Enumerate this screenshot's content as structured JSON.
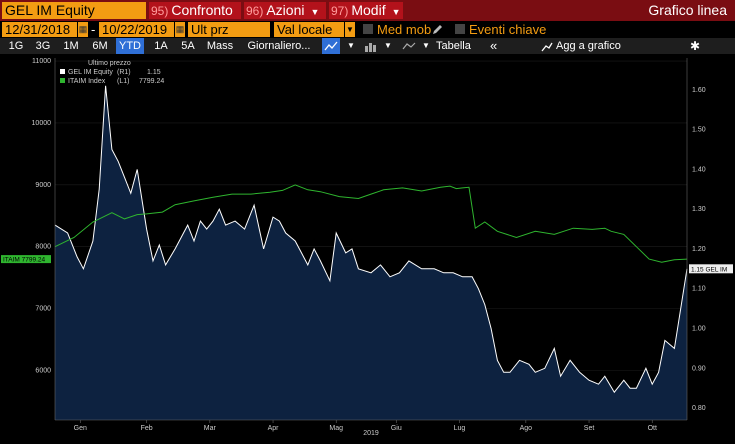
{
  "ticker": "GEL IM Equity",
  "menu": [
    {
      "num": "95)",
      "label": "Confronto"
    },
    {
      "num": "96)",
      "label": "Azioni"
    },
    {
      "num": "97)",
      "label": "Modif"
    }
  ],
  "graph_title": "Grafico linea",
  "controls": {
    "start_date": "12/31/2018",
    "separator": "-",
    "end_date": "10/22/2019",
    "price_field": "Ult prz",
    "currency": "Val locale",
    "moving_avg_label": "Med mob",
    "key_events_label": "Eventi chiave"
  },
  "periods": [
    "1G",
    "3G",
    "1M",
    "6M",
    "YTD",
    "1A",
    "5A",
    "Mass"
  ],
  "selected_period": "YTD",
  "frequency": "Giornaliero...",
  "table_label": "Tabella",
  "collapse_label": "«",
  "add_to_chart_label": "Agg a grafico",
  "icons": [
    "line-chart-icon",
    "dropdown-arrow-icon",
    "pencil-icon",
    "gear-icon",
    "calendar-icon"
  ],
  "colors": {
    "accent_orange": "#f39c12",
    "header_red": "#7a0d12",
    "area_fill": "#0d2240",
    "equity_line": "#ffffff",
    "index_line": "#2fb52f"
  },
  "chart_data": {
    "type": "area",
    "legend": {
      "title": "Ultimo prezzo",
      "entries": [
        {
          "name": "GEL IM Equity",
          "axis": "(R1)",
          "value": "1.15",
          "color": "#ffffff"
        },
        {
          "name": "ITAIM Index",
          "axis": "(L1)",
          "value": "7799.24",
          "color": "#2fb52f"
        }
      ]
    },
    "x_ticks": [
      "Gen",
      "Feb",
      "Mar",
      "Apr",
      "Mag",
      "Giu",
      "Lug",
      "Ago",
      "Set",
      "Ott"
    ],
    "x_tick_pos": [
      0.04,
      0.145,
      0.245,
      0.345,
      0.445,
      0.54,
      0.64,
      0.745,
      0.845,
      0.945
    ],
    "x_label": "2019",
    "left_axis": {
      "ticks": [
        6000,
        7000,
        8000,
        9000,
        10000,
        11000
      ],
      "min": 5200,
      "max": 11050
    },
    "right_axis": {
      "ticks": [
        "0.80",
        "0.90",
        "1.00",
        "1.10",
        "1.20",
        "1.30",
        "1.40",
        "1.50",
        "1.60"
      ],
      "min": 0.77,
      "max": 1.68
    },
    "last_label_left": "ITAIM 7799.24",
    "last_label_right": "1.15 GEL IM",
    "series": [
      {
        "name": "GEL IM Equity",
        "axis": "right",
        "x": [
          0.0,
          0.02,
          0.035,
          0.045,
          0.06,
          0.07,
          0.08,
          0.09,
          0.1,
          0.11,
          0.12,
          0.13,
          0.145,
          0.155,
          0.165,
          0.175,
          0.19,
          0.2,
          0.21,
          0.22,
          0.23,
          0.24,
          0.25,
          0.26,
          0.27,
          0.285,
          0.3,
          0.315,
          0.33,
          0.345,
          0.355,
          0.365,
          0.38,
          0.39,
          0.4,
          0.41,
          0.42,
          0.435,
          0.445,
          0.46,
          0.47,
          0.48,
          0.5,
          0.515,
          0.53,
          0.545,
          0.56,
          0.58,
          0.6,
          0.615,
          0.63,
          0.645,
          0.66,
          0.67,
          0.68,
          0.69,
          0.7,
          0.71,
          0.72,
          0.735,
          0.75,
          0.76,
          0.775,
          0.79,
          0.8,
          0.815,
          0.83,
          0.845,
          0.86,
          0.87,
          0.885,
          0.9,
          0.91,
          0.92,
          0.935,
          0.945,
          0.955,
          0.965,
          0.98,
          1.0
        ],
        "y": [
          1.26,
          1.24,
          1.18,
          1.15,
          1.22,
          1.35,
          1.61,
          1.45,
          1.42,
          1.38,
          1.34,
          1.4,
          1.25,
          1.17,
          1.21,
          1.16,
          1.2,
          1.23,
          1.26,
          1.22,
          1.27,
          1.25,
          1.27,
          1.3,
          1.26,
          1.27,
          1.25,
          1.31,
          1.2,
          1.28,
          1.27,
          1.24,
          1.22,
          1.19,
          1.16,
          1.2,
          1.17,
          1.12,
          1.24,
          1.19,
          1.2,
          1.15,
          1.14,
          1.16,
          1.13,
          1.14,
          1.17,
          1.15,
          1.15,
          1.14,
          1.14,
          1.13,
          1.13,
          1.1,
          1.06,
          1.0,
          0.92,
          0.89,
          0.89,
          0.92,
          0.91,
          0.89,
          0.9,
          0.95,
          0.88,
          0.92,
          0.89,
          0.87,
          0.86,
          0.88,
          0.84,
          0.87,
          0.85,
          0.85,
          0.9,
          0.86,
          0.89,
          0.97,
          0.95,
          1.15
        ]
      },
      {
        "name": "ITAIM Index",
        "axis": "left",
        "x": [
          0.0,
          0.03,
          0.06,
          0.09,
          0.11,
          0.13,
          0.145,
          0.17,
          0.19,
          0.22,
          0.25,
          0.28,
          0.31,
          0.34,
          0.36,
          0.38,
          0.4,
          0.42,
          0.45,
          0.48,
          0.5,
          0.52,
          0.55,
          0.58,
          0.61,
          0.625,
          0.635,
          0.645,
          0.655,
          0.665,
          0.68,
          0.7,
          0.73,
          0.76,
          0.79,
          0.82,
          0.85,
          0.87,
          0.88,
          0.9,
          0.92,
          0.94,
          0.96,
          0.98,
          1.0
        ],
        "y": [
          8000,
          8150,
          8400,
          8550,
          8450,
          8520,
          8530,
          8560,
          8680,
          8740,
          8800,
          8850,
          8850,
          8880,
          8910,
          9000,
          8920,
          8890,
          8810,
          8780,
          8850,
          8920,
          8950,
          8900,
          8960,
          8980,
          8940,
          8950,
          8960,
          8300,
          8400,
          8250,
          8150,
          8250,
          8200,
          8300,
          8280,
          8300,
          8250,
          8200,
          8000,
          7800,
          7750,
          7790,
          7800
        ]
      }
    ]
  }
}
